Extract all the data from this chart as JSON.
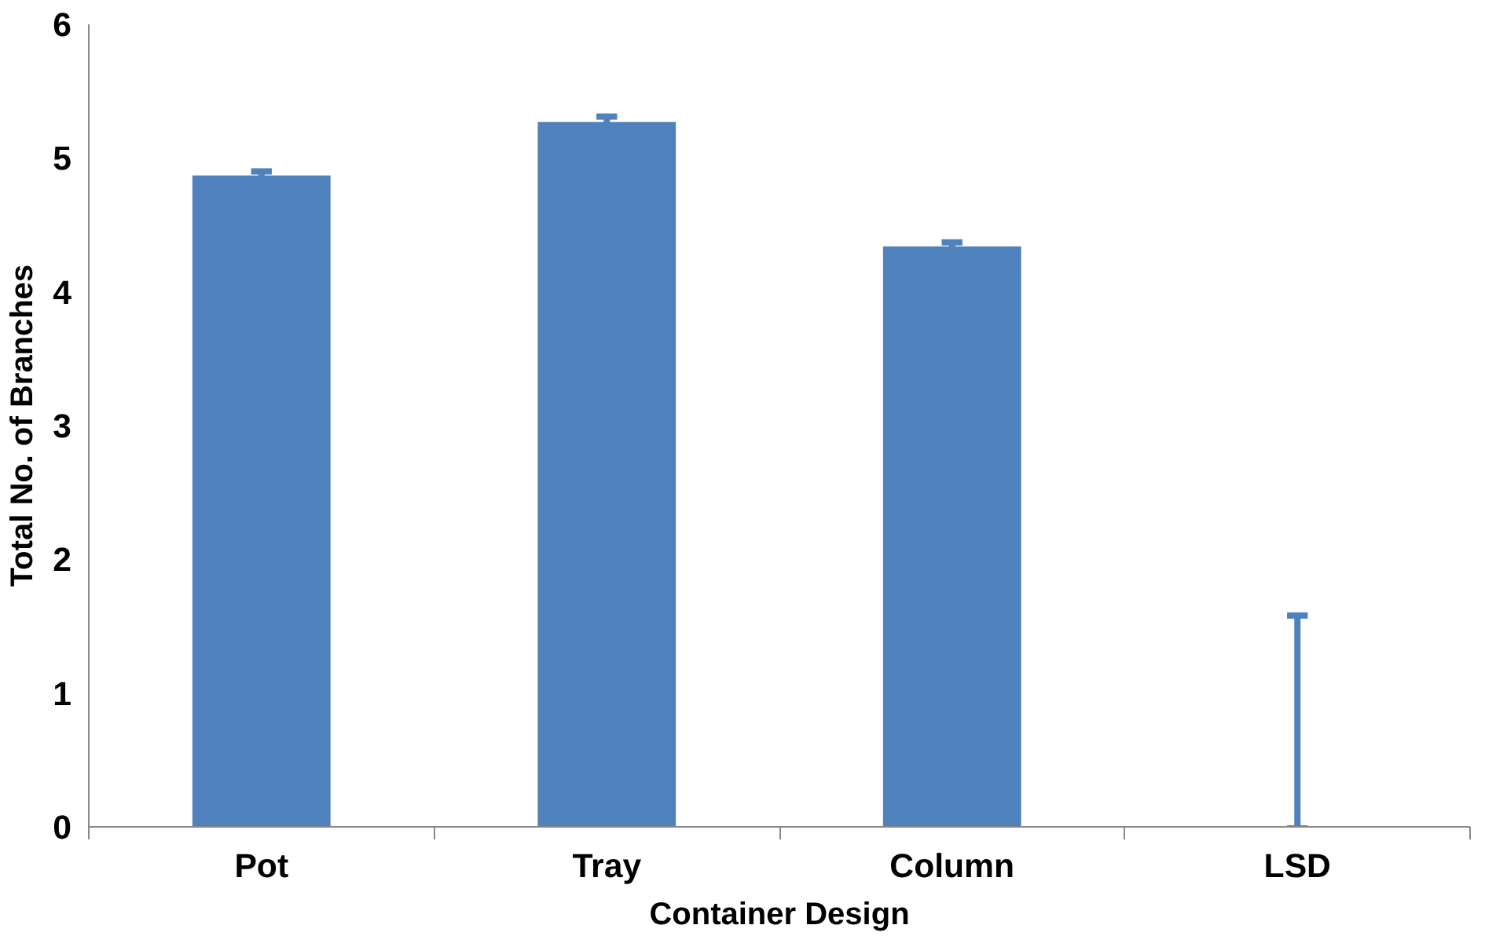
{
  "chart_data": {
    "type": "bar",
    "xlabel": "Container Design",
    "ylabel": "Total No. of Branches",
    "categories": [
      "Pot",
      "Tray",
      "Column",
      "LSD"
    ],
    "values": [
      4.87,
      5.27,
      4.34,
      0
    ],
    "errors": [
      0.03,
      0.04,
      0.03,
      [
        0,
        1.58
      ]
    ],
    "color": "#4f81bd",
    "ylim": [
      0,
      6
    ],
    "yticks": [
      0,
      1,
      2,
      3,
      4,
      5,
      6
    ],
    "grid": false
  }
}
